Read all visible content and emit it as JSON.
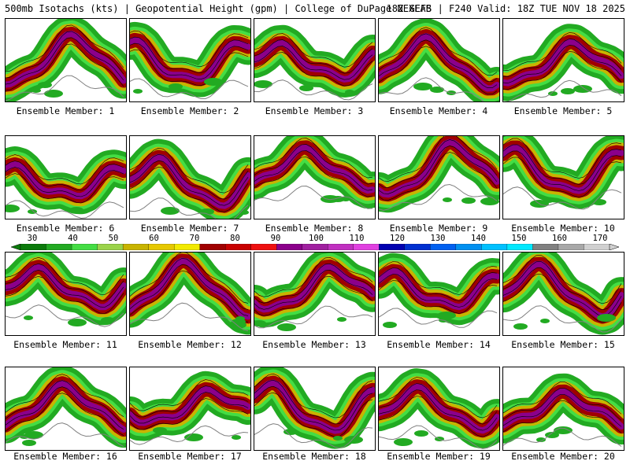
{
  "header": {
    "left_title": "500mb Isotachs (kts) | Geopotential Height (gpm) | College of DuPage NEXLAB",
    "right_title": "18Z GEFS | F240 Valid: 18Z TUE NOV 18 2025"
  },
  "panels": [
    {
      "label": "Ensemble Member: 1"
    },
    {
      "label": "Ensemble Member: 2"
    },
    {
      "label": "Ensemble Member: 3"
    },
    {
      "label": "Ensemble Member: 4"
    },
    {
      "label": "Ensemble Member: 5"
    },
    {
      "label": "Ensemble Member: 6"
    },
    {
      "label": "Ensemble Member: 7"
    },
    {
      "label": "Ensemble Member: 8"
    },
    {
      "label": "Ensemble Member: 9"
    },
    {
      "label": "Ensemble Member: 10"
    },
    {
      "label": "Ensemble Member: 11"
    },
    {
      "label": "Ensemble Member: 12"
    },
    {
      "label": "Ensemble Member: 13"
    },
    {
      "label": "Ensemble Member: 14"
    },
    {
      "label": "Ensemble Member: 15"
    },
    {
      "label": "Ensemble Member: 16"
    },
    {
      "label": "Ensemble Member: 17"
    },
    {
      "label": "Ensemble Member: 18"
    },
    {
      "label": "Ensemble Member: 19"
    },
    {
      "label": "Ensemble Member: 20"
    }
  ],
  "colorbar": {
    "labels": [
      "30",
      "40",
      "50",
      "60",
      "70",
      "80",
      "90",
      "100",
      "110",
      "120",
      "130",
      "140",
      "150",
      "160",
      "170"
    ],
    "colors": [
      "#0b7a0b",
      "#22aa22",
      "#44dd44",
      "#9bd34a",
      "#c8b400",
      "#e6c800",
      "#f2ea00",
      "#a00000",
      "#c80000",
      "#ee1010",
      "#8b008b",
      "#a020a0",
      "#c030c0",
      "#e040e0",
      "#0000b0",
      "#0030d0",
      "#0060f0",
      "#0090f0",
      "#00c0ff",
      "#00e8ff",
      "#808080",
      "#a8a8a8",
      "#d0d0d0"
    ]
  }
}
